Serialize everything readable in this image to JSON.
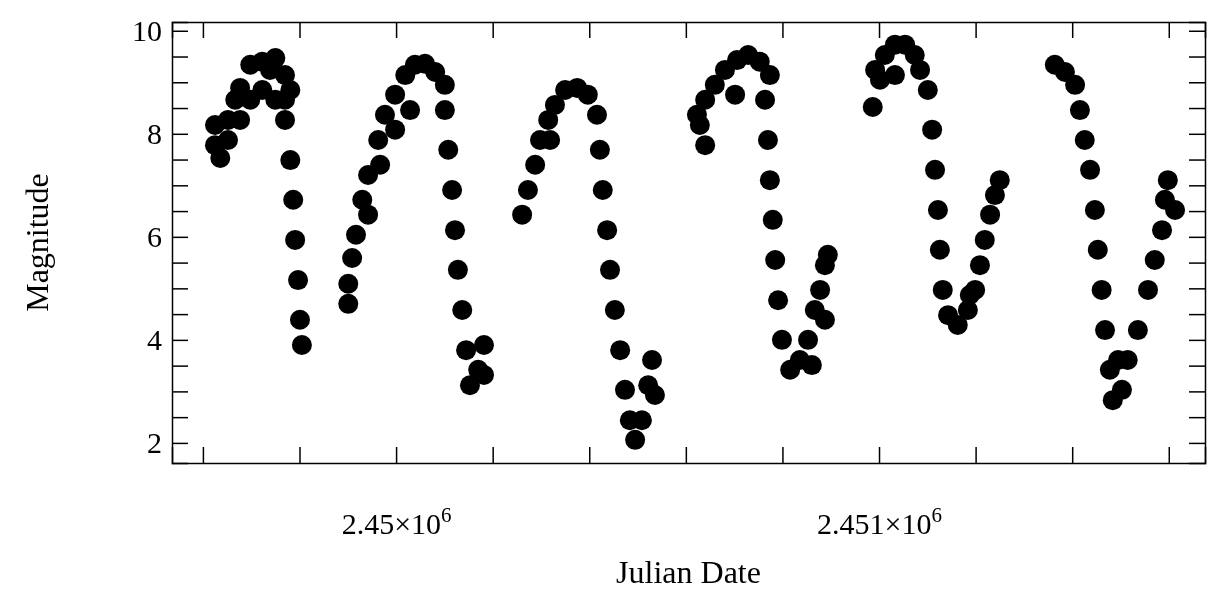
{
  "chart_data": {
    "type": "scatter",
    "xlabel": "Julian Date",
    "ylabel": "Magnitude",
    "marker": "circle",
    "xlim": [
      2449536,
      2451675
    ],
    "ylim": [
      1.61,
      10.17
    ],
    "xticks": [
      {
        "value": 2449600,
        "label": null
      },
      {
        "value": 2449800,
        "label": null
      },
      {
        "value": 2450000,
        "label": "2.45×10$^{6}$"
      },
      {
        "value": 2450200,
        "label": null
      },
      {
        "value": 2450400,
        "label": null
      },
      {
        "value": 2450600,
        "label": null
      },
      {
        "value": 2450800,
        "label": null
      },
      {
        "value": 2451000,
        "label": "2.451×10$^{6}$"
      },
      {
        "value": 2451200,
        "label": null
      },
      {
        "value": 2451400,
        "label": null
      },
      {
        "value": 2451600,
        "label": null
      }
    ],
    "yticks": [
      2,
      {
        "value": 2.5,
        "label": null
      },
      {
        "value": 3,
        "label": null
      },
      {
        "value": 3.5,
        "label": null
      },
      4,
      {
        "value": 4.5,
        "label": null
      },
      {
        "value": 5,
        "label": null
      },
      {
        "value": 5.5,
        "label": null
      },
      6,
      {
        "value": 6.5,
        "label": null
      },
      {
        "value": 7,
        "label": null
      },
      {
        "value": 7.5,
        "label": null
      },
      8,
      {
        "value": 8.5,
        "label": null
      },
      {
        "value": 9,
        "label": null
      },
      {
        "value": 9.5,
        "label": null
      },
      10
    ],
    "series": [
      {
        "color": "#000000",
        "x": [
          2449625,
          2449625,
          2449636,
          2449652,
          2449652,
          2449667,
          2449677,
          2449677,
          2449698,
          2449698,
          2449723,
          2449723,
          2449739,
          2449750,
          2449750,
          2449770,
          2449770,
          2449781,
          2449770,
          2449781,
          2449787,
          2449791,
          2449797,
          2449801,
          2449805,
          2449909,
          2449901,
          2449901,
          2449917,
          2449930,
          2449942,
          2449942,
          2449963,
          2449967,
          2449977,
          2449998,
          2449998,
          2450019,
          2450029,
          2450039,
          2450060,
          2450081,
          2450101,
          2450101,
          2450108,
          2450116,
          2450122,
          2450128,
          2450137,
          2450145,
          2450153,
          2450170,
          2450182,
          2450182,
          2450261,
          2450273,
          2450288,
          2450298,
          2450315,
          2450319,
          2450329,
          2450350,
          2450375,
          2450397,
          2450416,
          2450422,
          2450428,
          2450437,
          2450443,
          2450453,
          2450464,
          2450474,
          2450484,
          2450495,
          2450509,
          2450522,
          2450530,
          2450536,
          2450623,
          2450640,
          2450629,
          2450640,
          2450660,
          2450681,
          2450702,
          2450706,
          2450729,
          2450753,
          2450774,
          2450764,
          2450770,
          2450774,
          2450780,
          2450785,
          2450791,
          2450799,
          2450816,
          2450836,
          2450853,
          2450861,
          2450867,
          2450878,
          2450888,
          2450888,
          2450894,
          2450987,
          2450992,
          2451002,
          2451012,
          2451033,
          2451033,
          2451054,
          2451074,
          2451085,
          2451101,
          2451110,
          2451116,
          2451122,
          2451126,
          2451132,
          2451143,
          2451163,
          2451184,
          2451188,
          2451199,
          2451209,
          2451219,
          2451230,
          2451240,
          2451250,
          2451364,
          2451385,
          2451406,
          2451416,
          2451426,
          2451437,
          2451447,
          2451453,
          2451461,
          2451468,
          2451478,
          2451484,
          2451495,
          2451503,
          2451515,
          2451536,
          2451557,
          2451571,
          2451586,
          2451592,
          2451598,
          2451613
        ],
        "values": [
          8.17,
          7.78,
          7.53,
          8.27,
          7.88,
          8.66,
          8.89,
          8.27,
          9.34,
          8.66,
          9.4,
          8.85,
          9.24,
          9.47,
          8.66,
          9.14,
          8.66,
          8.85,
          8.27,
          7.49,
          6.72,
          5.94,
          5.16,
          4.39,
          3.9,
          5.59,
          5.09,
          4.7,
          6.04,
          6.72,
          7.2,
          6.43,
          7.88,
          7.4,
          8.37,
          8.76,
          8.08,
          9.14,
          8.46,
          9.34,
          9.36,
          9.2,
          8.95,
          8.46,
          7.69,
          6.91,
          6.13,
          5.36,
          4.58,
          3.8,
          3.12,
          3.42,
          3.9,
          3.32,
          6.43,
          6.91,
          7.4,
          7.88,
          8.27,
          7.88,
          8.56,
          8.85,
          8.89,
          8.76,
          8.37,
          7.69,
          6.91,
          6.13,
          5.36,
          4.58,
          3.8,
          3.03,
          2.44,
          2.06,
          2.44,
          3.12,
          3.61,
          2.93,
          8.37,
          7.78,
          8.17,
          8.66,
          8.95,
          9.24,
          8.76,
          9.43,
          9.53,
          9.4,
          9.14,
          8.66,
          7.88,
          7.1,
          6.33,
          5.55,
          4.77,
          4.0,
          3.42,
          3.61,
          4.0,
          3.51,
          4.58,
          4.97,
          5.45,
          4.39,
          5.65,
          8.52,
          9.24,
          9.05,
          9.53,
          9.73,
          9.14,
          9.73,
          9.53,
          9.24,
          8.85,
          8.08,
          7.3,
          6.52,
          5.75,
          4.97,
          4.48,
          4.29,
          4.58,
          4.87,
          4.97,
          5.45,
          5.94,
          6.43,
          6.81,
          7.1,
          9.34,
          9.2,
          8.95,
          8.46,
          7.88,
          7.3,
          6.52,
          5.75,
          4.97,
          4.19,
          3.42,
          2.83,
          3.61,
          3.03,
          3.61,
          4.19,
          4.97,
          5.55,
          6.13,
          6.72,
          7.1,
          6.52
        ]
      }
    ]
  }
}
